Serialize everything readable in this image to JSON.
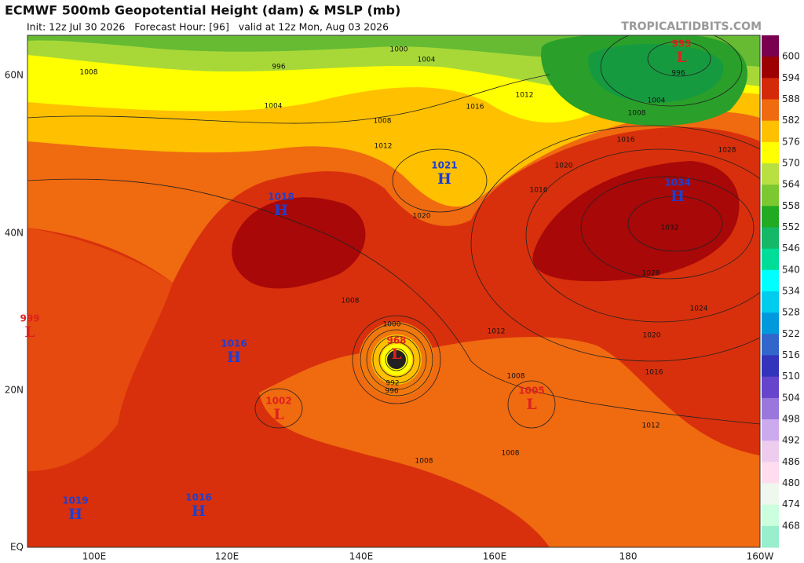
{
  "header": {
    "title": "ECMWF 500mb Geopotential Height (dam) & MSLP (mb)",
    "subtitle": "Init: 12z Jul 30 2026   Forecast Hour: [96]   valid at 12z Mon, Aug 03 2026",
    "watermark": "TROPICALTIDBITS.COM"
  },
  "map": {
    "lat_labels": [
      "60N",
      "40N",
      "20N",
      "EQ"
    ],
    "lon_labels": [
      "100E",
      "120E",
      "140E",
      "160E",
      "180",
      "160W"
    ],
    "pressure_centers": [
      {
        "letter": "L",
        "value": "993"
      },
      {
        "letter": "H",
        "value": "1021"
      },
      {
        "letter": "H",
        "value": "1034"
      },
      {
        "letter": "H",
        "value": "1018"
      },
      {
        "letter": "H",
        "value": "1016"
      },
      {
        "letter": "L",
        "value": "968"
      },
      {
        "letter": "L",
        "value": "1002"
      },
      {
        "letter": "L",
        "value": "1005"
      },
      {
        "letter": "H",
        "value": "1019"
      },
      {
        "letter": "H",
        "value": "1016"
      },
      {
        "letter": "L",
        "value": "999"
      }
    ],
    "isobar_labels": [
      "1008",
      "996",
      "1000",
      "1004",
      "1004",
      "1012",
      "1016",
      "1008",
      "1012",
      "1016",
      "1020",
      "1028",
      "1016",
      "1020",
      "1032",
      "1028",
      "1024",
      "1020",
      "1016",
      "1012",
      "1008",
      "1000",
      "996",
      "992",
      "1008",
      "1012",
      "1008",
      "1008",
      "1004",
      "1008",
      "996"
    ]
  },
  "colorbar": {
    "labels": [
      "600",
      "594",
      "588",
      "582",
      "576",
      "570",
      "564",
      "558",
      "552",
      "546",
      "540",
      "534",
      "528",
      "522",
      "516",
      "510",
      "504",
      "498",
      "492",
      "486",
      "480",
      "474",
      "468"
    ]
  }
}
